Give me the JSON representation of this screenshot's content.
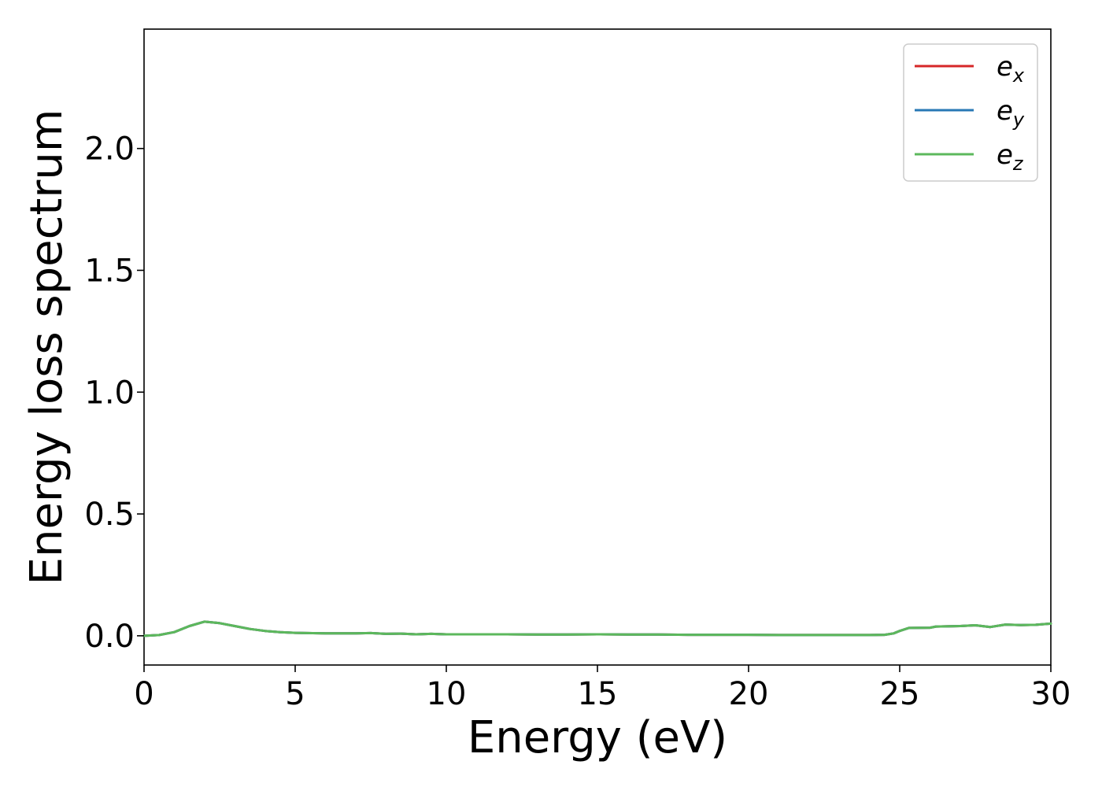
{
  "chart_data": {
    "type": "line",
    "title": "",
    "xlabel": "Energy (eV)",
    "ylabel": "Energy loss spectrum",
    "xlim": [
      0,
      30
    ],
    "ylim": [
      -0.12,
      2.49
    ],
    "xticks": [
      0,
      5,
      10,
      15,
      20,
      25,
      30
    ],
    "xtick_labels": [
      "0",
      "5",
      "10",
      "15",
      "20",
      "25",
      "30"
    ],
    "yticks": [
      0.0,
      0.5,
      1.0,
      1.5,
      2.0
    ],
    "ytick_labels": [
      "0.0",
      "0.5",
      "1.0",
      "1.5",
      "2.0"
    ],
    "grid": false,
    "legend_position": "top-right",
    "x": [
      0,
      0.5,
      1.0,
      1.5,
      2.0,
      2.5,
      3.0,
      3.5,
      4.0,
      4.5,
      5.0,
      6.0,
      7.0,
      7.5,
      8.0,
      8.5,
      9.0,
      9.5,
      10.0,
      11.0,
      12.0,
      13.0,
      14.0,
      15.0,
      16.0,
      17.0,
      18.0,
      19.0,
      20.0,
      21.0,
      22.0,
      23.0,
      24.0,
      24.5,
      24.8,
      25.0,
      25.3,
      26.0,
      26.2,
      27.0,
      27.5,
      28.0,
      28.5,
      29.0,
      29.5,
      30.0
    ],
    "series": [
      {
        "name": "e_x",
        "legend_main": "e",
        "legend_sub": "x",
        "color": "#d62728",
        "values": [
          0.0,
          0.003,
          0.015,
          0.04,
          0.058,
          0.052,
          0.04,
          0.028,
          0.02,
          0.015,
          0.012,
          0.01,
          0.01,
          0.011,
          0.008,
          0.009,
          0.006,
          0.008,
          0.006,
          0.006,
          0.006,
          0.005,
          0.005,
          0.006,
          0.005,
          0.005,
          0.004,
          0.004,
          0.004,
          0.003,
          0.003,
          0.003,
          0.003,
          0.004,
          0.01,
          0.02,
          0.032,
          0.033,
          0.038,
          0.04,
          0.043,
          0.036,
          0.046,
          0.044,
          0.045,
          0.05
        ]
      },
      {
        "name": "e_y",
        "legend_main": "e",
        "legend_sub": "y",
        "color": "#2878b5",
        "values": [
          0.0,
          0.003,
          0.015,
          0.04,
          0.058,
          0.052,
          0.04,
          0.028,
          0.02,
          0.015,
          0.012,
          0.01,
          0.01,
          0.011,
          0.008,
          0.009,
          0.006,
          0.008,
          0.006,
          0.006,
          0.006,
          0.005,
          0.005,
          0.006,
          0.005,
          0.005,
          0.004,
          0.004,
          0.004,
          0.003,
          0.003,
          0.003,
          0.003,
          0.004,
          0.01,
          0.02,
          0.032,
          0.033,
          0.038,
          0.04,
          0.043,
          0.036,
          0.046,
          0.044,
          0.045,
          0.05
        ]
      },
      {
        "name": "e_z",
        "legend_main": "e",
        "legend_sub": "z",
        "color": "#5cb85c",
        "values": [
          0.0,
          0.003,
          0.015,
          0.04,
          0.058,
          0.052,
          0.04,
          0.028,
          0.02,
          0.015,
          0.012,
          0.01,
          0.01,
          0.011,
          0.008,
          0.009,
          0.006,
          0.008,
          0.006,
          0.006,
          0.006,
          0.005,
          0.005,
          0.006,
          0.005,
          0.005,
          0.004,
          0.004,
          0.004,
          0.003,
          0.003,
          0.003,
          0.003,
          0.004,
          0.01,
          0.02,
          0.032,
          0.033,
          0.038,
          0.04,
          0.043,
          0.036,
          0.046,
          0.044,
          0.045,
          0.05
        ]
      }
    ]
  }
}
